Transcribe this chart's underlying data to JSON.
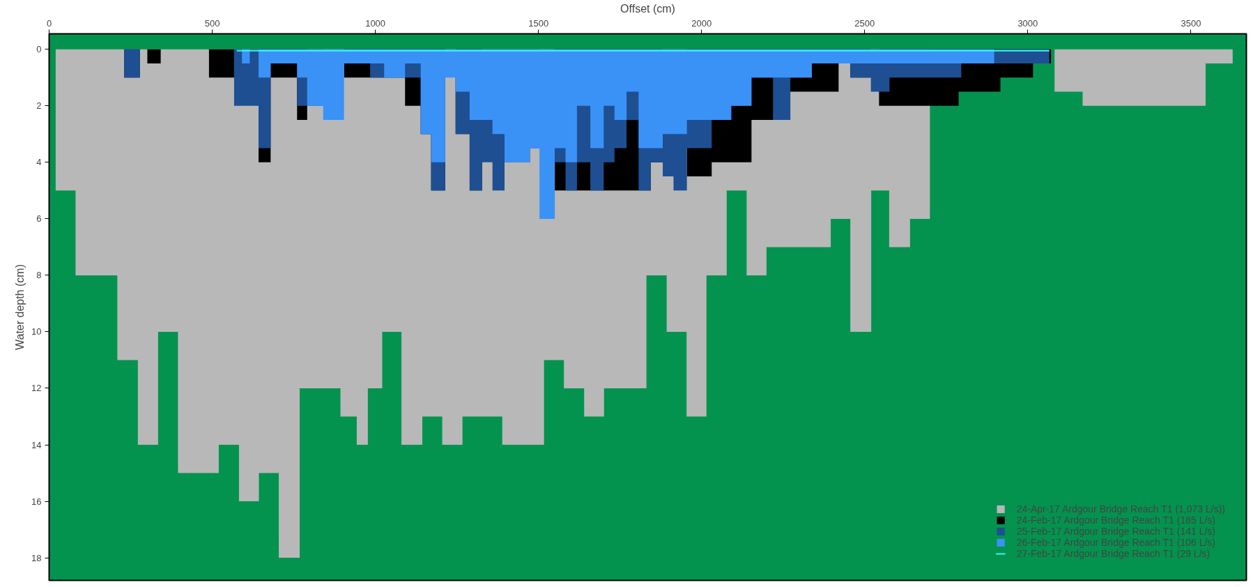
{
  "chart_data": {
    "type": "area",
    "xlabel": "Offset (cm)",
    "ylabel": "Water depth (cm)",
    "xlim": [
      0,
      3670
    ],
    "xticks": [
      0,
      500,
      1000,
      1500,
      2000,
      2500,
      3000,
      3500
    ],
    "ylim": [
      18.8,
      -0.55
    ],
    "yticks": [
      0,
      2,
      4,
      6,
      8,
      10,
      12,
      14,
      16,
      18
    ],
    "grid": false,
    "legend": "bottom right",
    "series": [
      {
        "name": "24-Apr-17 Ardgour Bridge Reach T1 (1,073 L/s))",
        "color": "#b8b8b8",
        "x": [
          20,
          81,
          209,
          272,
          334,
          395,
          520,
          582,
          643,
          704,
          768,
          893,
          943,
          977,
          1021,
          1080,
          1144,
          1205,
          1267,
          1389,
          1517,
          1578,
          1640,
          1701,
          1831,
          1893,
          1954,
          2015,
          2077,
          2138,
          2199,
          2396,
          2456,
          2520,
          2575,
          2639,
          2700,
          2788,
          2916,
          3082,
          3168,
          3545,
          3628
        ],
        "values": [
          5,
          8,
          11,
          14,
          10,
          15,
          14,
          16,
          15,
          18,
          12,
          13,
          14,
          12,
          10,
          14,
          13,
          14,
          13,
          14,
          11,
          12,
          13,
          12,
          8,
          10,
          13,
          8,
          5,
          8,
          7,
          6,
          10,
          5,
          7,
          6,
          null,
          null,
          null,
          1.5,
          2,
          0.5,
          0.5
        ]
      },
      {
        "name": "24-Feb-17 Ardgour Bridge Reach T1 (185 L/s)",
        "color": "#000000",
        "x": [
          230,
          278,
          301,
          342,
          490,
          567,
          642,
          679,
          760,
          791,
          840,
          904,
          1091,
          1139,
          1171,
          1214,
          1246,
          1289,
          1327,
          1359,
          1396,
          1474,
          1503,
          1550,
          1844,
          1881,
          1914,
          1955,
          2031,
          2153,
          2272,
          2420,
          2456,
          2519,
          2544,
          2788,
          2916,
          3016,
          3071
        ],
        "values": [
          1,
          null,
          0.5,
          0,
          1,
          null,
          4,
          1,
          2.5,
          null,
          null,
          1,
          2,
          3,
          5,
          null,
          3,
          5,
          null,
          null,
          null,
          null,
          null,
          5,
          4,
          null,
          null,
          4.5,
          4,
          2.5,
          1.5,
          0.5,
          1,
          null,
          2,
          1.5,
          1,
          0.5,
          0.5
        ]
      },
      {
        "name": "25-Feb-17 Ardgour Bridge Reach T1 (141 L/s)",
        "color": "#1e4f92",
        "x": [
          230,
          278,
          567,
          642,
          679,
          760,
          840,
          904,
          984,
          1139,
          1171,
          1214,
          1246,
          1289,
          1327,
          1359,
          1396,
          1474,
          1503,
          1550,
          1583,
          1618,
          1659,
          1700,
          1733,
          1770,
          1807,
          1844,
          1881,
          1914,
          1955,
          2031,
          2091,
          2153,
          2219,
          2272,
          2338,
          2456,
          2519,
          2576,
          2796,
          3066
        ],
        "values": [
          1,
          0,
          2,
          3.5,
          0.5,
          2,
          null,
          0.5,
          1,
          3,
          5,
          null,
          3,
          5,
          4,
          5,
          4,
          3.5,
          null,
          4,
          5,
          4,
          5,
          4,
          3.5,
          2.5,
          5,
          4,
          4.5,
          5,
          3.5,
          2.5,
          2,
          1,
          2.5,
          1,
          0.5,
          1,
          1.5,
          1,
          0.5,
          0.5
        ]
      },
      {
        "name": "26-Feb-17 Ardgour Bridge Reach T1 (106 L/s)",
        "color": "#3a92f7",
        "x": [
          591,
          615,
          642,
          679,
          760,
          791,
          840,
          904,
          1027,
          1091,
          1139,
          1171,
          1214,
          1246,
          1289,
          1359,
          1396,
          1474,
          1503,
          1550,
          1583,
          1618,
          1659,
          1700,
          1733,
          1770,
          1807,
          1881,
          1955,
          2091,
          2153,
          2338,
          2897
        ],
        "values": [
          0.5,
          0,
          1,
          0.5,
          1,
          2,
          2.5,
          0.5,
          1,
          0.5,
          3,
          4,
          1,
          1.5,
          2.5,
          3,
          4,
          3.5,
          6,
          3.5,
          4,
          2,
          3.5,
          2,
          2.5,
          1.5,
          3.5,
          3,
          2.5,
          2,
          1,
          0.5,
          0.5
        ]
      },
      {
        "name": "27-Feb-17 Ardgour Bridge Reach T1 (29 L/s)",
        "type": "line",
        "color": "#3ff5f0",
        "x": [
          575,
          3066
        ],
        "values": [
          0.05,
          0.05
        ]
      }
    ]
  }
}
